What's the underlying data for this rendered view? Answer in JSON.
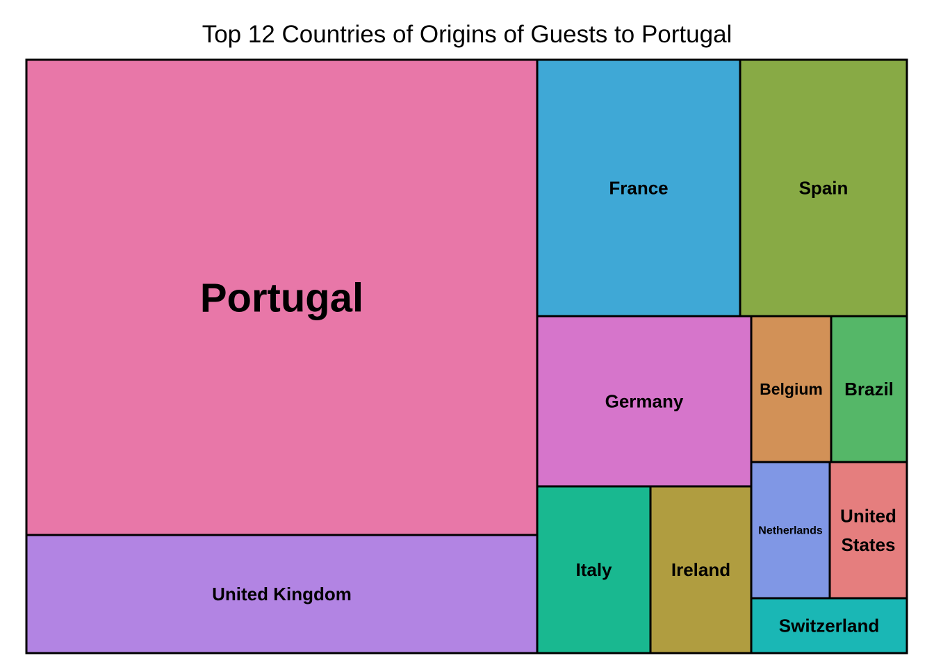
{
  "chart_data": {
    "type": "treemap",
    "title": "Top 12 Countries of Origins of Guests to Portugal",
    "border_color": "#000000",
    "items": [
      {
        "name": "Portugal",
        "label": [
          "Portugal"
        ],
        "value": 48590,
        "color": "#E877A8"
      },
      {
        "name": "United Kingdom",
        "label": [
          "United Kingdom"
        ],
        "value": 12129,
        "color": "#B284E3"
      },
      {
        "name": "France",
        "label": [
          "France"
        ],
        "value": 10415,
        "color": "#3FA8D6"
      },
      {
        "name": "Spain",
        "label": [
          "Spain"
        ],
        "value": 8568,
        "color": "#88AA45"
      },
      {
        "name": "Germany",
        "label": [
          "Germany"
        ],
        "value": 7287,
        "color": "#D675CB"
      },
      {
        "name": "Italy",
        "label": [
          "Italy"
        ],
        "value": 3766,
        "color": "#19B890"
      },
      {
        "name": "Ireland",
        "label": [
          "Ireland"
        ],
        "value": 3375,
        "color": "#B09D40"
      },
      {
        "name": "Belgium",
        "label": [
          "Belgium"
        ],
        "value": 2342,
        "color": "#D29157"
      },
      {
        "name": "Brazil",
        "label": [
          "Brazil"
        ],
        "value": 2224,
        "color": "#55B768"
      },
      {
        "name": "Netherlands",
        "label": [
          "Netherlands"
        ],
        "value": 2104,
        "color": "#8097E5"
      },
      {
        "name": "United States",
        "label": [
          "United",
          "States"
        ],
        "value": 2097,
        "color": "#E57E7E"
      },
      {
        "name": "Switzerland",
        "label": [
          "Switzerland"
        ],
        "value": 1730,
        "color": "#1AB7B5"
      }
    ]
  }
}
